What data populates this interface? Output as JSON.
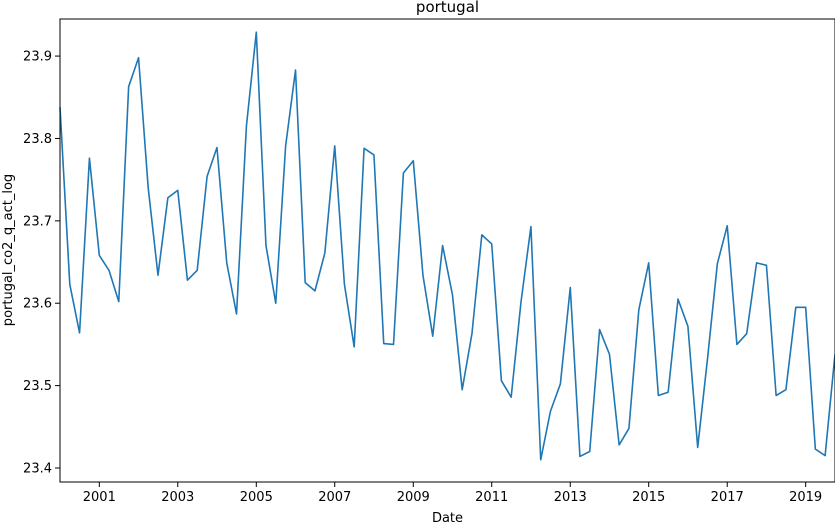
{
  "chart_data": {
    "type": "line",
    "title": "portugal",
    "xlabel": "Date",
    "ylabel": "portugal_co2_q_act_log",
    "xlim": [
      "2000-01-01",
      "2019-10-01"
    ],
    "ylim": [
      23.383,
      23.945
    ],
    "x_ticks": [
      "2001",
      "2003",
      "2005",
      "2007",
      "2009",
      "2011",
      "2013",
      "2015",
      "2017",
      "2019"
    ],
    "y_ticks": [
      "23.4",
      "23.5",
      "23.6",
      "23.7",
      "23.8",
      "23.9"
    ],
    "grid": false,
    "line_color": "#1f77b4",
    "series": [
      {
        "x": [
          "2000-01-01",
          "2000-04-01",
          "2000-07-01",
          "2000-10-01",
          "2001-01-01",
          "2001-04-01",
          "2001-07-01",
          "2001-10-01",
          "2002-01-01",
          "2002-04-01",
          "2002-07-01",
          "2002-10-01",
          "2003-01-01",
          "2003-04-01",
          "2003-07-01",
          "2003-10-01",
          "2004-01-01",
          "2004-04-01",
          "2004-07-01",
          "2004-10-01",
          "2005-01-01",
          "2005-04-01",
          "2005-07-01",
          "2005-10-01",
          "2006-01-01",
          "2006-04-01",
          "2006-07-01",
          "2006-10-01",
          "2007-01-01",
          "2007-04-01",
          "2007-07-01",
          "2007-10-01",
          "2008-01-01",
          "2008-04-01",
          "2008-07-01",
          "2008-10-01",
          "2009-01-01",
          "2009-04-01",
          "2009-07-01",
          "2009-10-01",
          "2010-01-01",
          "2010-04-01",
          "2010-07-01",
          "2010-10-01",
          "2011-01-01",
          "2011-04-01",
          "2011-07-01",
          "2011-10-01",
          "2012-01-01",
          "2012-04-01",
          "2012-07-01",
          "2012-10-01",
          "2013-01-01",
          "2013-04-01",
          "2013-07-01",
          "2013-10-01",
          "2014-01-01",
          "2014-04-01",
          "2014-07-01",
          "2014-10-01",
          "2015-01-01",
          "2015-04-01",
          "2015-07-01",
          "2015-10-01",
          "2016-01-01",
          "2016-04-01",
          "2016-07-01",
          "2016-10-01",
          "2017-01-01",
          "2017-04-01",
          "2017-07-01",
          "2017-10-01",
          "2018-01-01",
          "2018-04-01",
          "2018-07-01",
          "2018-10-01",
          "2019-01-01",
          "2019-04-01",
          "2019-07-01",
          "2019-10-01"
        ],
        "y": [
          23.838,
          23.623,
          23.564,
          23.776,
          23.658,
          23.64,
          23.602,
          23.863,
          23.898,
          23.74,
          23.634,
          23.728,
          23.737,
          23.628,
          23.64,
          23.754,
          23.789,
          23.649,
          23.587,
          23.815,
          23.929,
          23.67,
          23.6,
          23.791,
          23.883,
          23.625,
          23.615,
          23.661,
          23.791,
          23.623,
          23.547,
          23.788,
          23.78,
          23.551,
          23.55,
          23.758,
          23.773,
          23.634,
          23.56,
          23.67,
          23.61,
          23.495,
          23.563,
          23.683,
          23.672,
          23.506,
          23.486,
          23.602,
          23.693,
          23.41,
          23.469,
          23.502,
          23.619,
          23.414,
          23.42,
          23.568,
          23.538,
          23.428,
          23.448,
          23.592,
          23.649,
          23.488,
          23.492,
          23.605,
          23.572,
          23.425,
          23.532,
          23.648,
          23.694,
          23.55,
          23.563,
          23.649,
          23.646,
          23.488,
          23.495,
          23.595,
          23.595,
          23.423,
          23.415,
          23.538
        ]
      }
    ]
  }
}
